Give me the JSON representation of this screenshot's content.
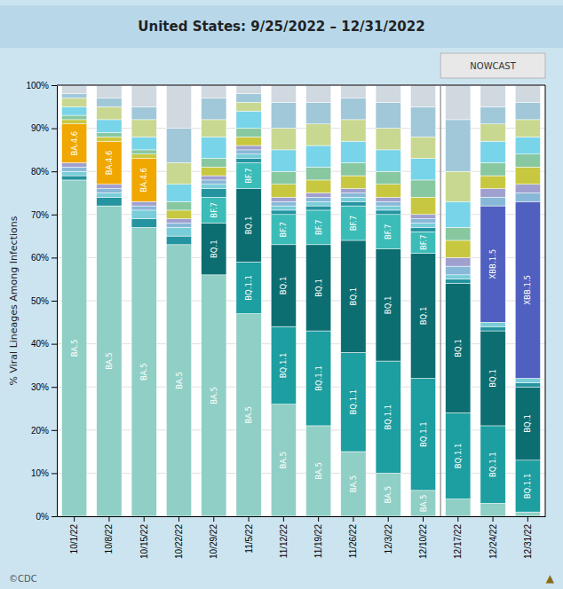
{
  "chart_data": {
    "type": "bar",
    "stacked": true,
    "title": "United States: 9/25/2022 – 12/31/2022",
    "y_label": "% Viral Lineages Among Infections",
    "categories": [
      "10/1/22",
      "10/8/22",
      "10/15/22",
      "10/22/22",
      "10/29/22",
      "11/5/22",
      "11/12/22",
      "11/19/22",
      "11/26/22",
      "12/3/22",
      "12/10/22",
      "12/17/22",
      "12/24/22",
      "12/31/22"
    ],
    "ylim": [
      0,
      100
    ],
    "yticks": [
      {
        "value": 0,
        "label": "0%"
      },
      {
        "value": 10,
        "label": "10%"
      },
      {
        "value": 20,
        "label": "20%"
      },
      {
        "value": 30,
        "label": "30%"
      },
      {
        "value": 40,
        "label": "40%"
      },
      {
        "value": 50,
        "label": "50%"
      },
      {
        "value": 60,
        "label": "60%"
      },
      {
        "value": 70,
        "label": "70%"
      },
      {
        "value": 80,
        "label": "80%"
      },
      {
        "value": 90,
        "label": "90%"
      },
      {
        "value": 100,
        "label": "100%"
      }
    ],
    "grid": true,
    "annotations": [
      {
        "text": "NOWCAST",
        "x": "12/17/22"
      },
      {
        "text": "©CDC"
      },
      {
        "text": "▲",
        "color": "#8B6914"
      }
    ],
    "series": [
      {
        "name": "BA.5",
        "color": "#90cfc5",
        "values": [
          78,
          72,
          67,
          63,
          56,
          47,
          26,
          21,
          15,
          10,
          6,
          4,
          3,
          1
        ]
      },
      {
        "name": "BQ.1.1",
        "color": "#1d9ea0",
        "values": [
          0,
          0,
          0,
          0,
          0,
          12,
          18,
          22,
          23,
          26,
          26,
          20,
          18,
          12
        ]
      },
      {
        "name": "BQ.1",
        "color": "#0d6e72",
        "values": [
          0,
          0,
          0,
          0,
          12,
          17,
          19,
          20,
          26,
          26,
          29,
          30,
          22,
          17
        ]
      },
      {
        "name": "BF.7",
        "color": "#3cbcb8",
        "values": [
          0,
          0,
          0,
          0,
          6,
          6,
          7,
          8,
          8,
          8,
          5,
          0,
          0,
          0
        ]
      },
      {
        "color": "#2494a0",
        "values": [
          1,
          2,
          2,
          2,
          2,
          1,
          1,
          1,
          1,
          1,
          1,
          1,
          1,
          1
        ]
      },
      {
        "color": "#78cdd8",
        "values": [
          1,
          1,
          2,
          2,
          1,
          1,
          1,
          1,
          1,
          1,
          1,
          1,
          1,
          1
        ]
      },
      {
        "name": "XBB.1.5",
        "color": "#5060c0",
        "values": [
          0,
          0,
          0,
          0,
          0,
          0,
          0,
          0,
          0,
          0,
          0,
          0,
          27,
          41
        ]
      },
      {
        "color": "#88b8d8",
        "values": [
          1,
          1,
          1,
          1,
          1,
          1,
          1,
          1,
          1,
          1,
          1,
          2,
          2,
          2
        ]
      },
      {
        "color": "#a0a0d0",
        "values": [
          1,
          1,
          1,
          1,
          1,
          1,
          1,
          1,
          1,
          1,
          1,
          2,
          2,
          2
        ]
      },
      {
        "name": "BA.4.6",
        "color": "#f0a800",
        "values": [
          9,
          10,
          10,
          0,
          0,
          0,
          0,
          0,
          0,
          0,
          0,
          0,
          0,
          0
        ]
      },
      {
        "color": "#c8c840",
        "values": [
          1,
          1,
          1,
          2,
          2,
          2,
          3,
          3,
          3,
          3,
          4,
          4,
          3,
          4
        ]
      },
      {
        "color": "#88c8a0",
        "values": [
          1,
          1,
          1,
          2,
          2,
          2,
          3,
          3,
          3,
          3,
          4,
          3,
          3,
          3
        ]
      },
      {
        "color": "#78d4e8",
        "values": [
          2,
          3,
          3,
          4,
          5,
          4,
          5,
          5,
          5,
          5,
          5,
          6,
          5,
          4
        ]
      },
      {
        "color": "#c8d890",
        "values": [
          2,
          3,
          4,
          5,
          4,
          2,
          5,
          5,
          5,
          5,
          5,
          7,
          4,
          4
        ]
      },
      {
        "color": "#a0c8d8",
        "values": [
          1,
          2,
          3,
          8,
          5,
          2,
          6,
          5,
          5,
          6,
          7,
          12,
          4,
          4
        ]
      },
      {
        "color": "#d0d8e0",
        "values": [
          2,
          3,
          5,
          10,
          3,
          2,
          4,
          4,
          3,
          4,
          5,
          8,
          5,
          4
        ]
      }
    ]
  }
}
